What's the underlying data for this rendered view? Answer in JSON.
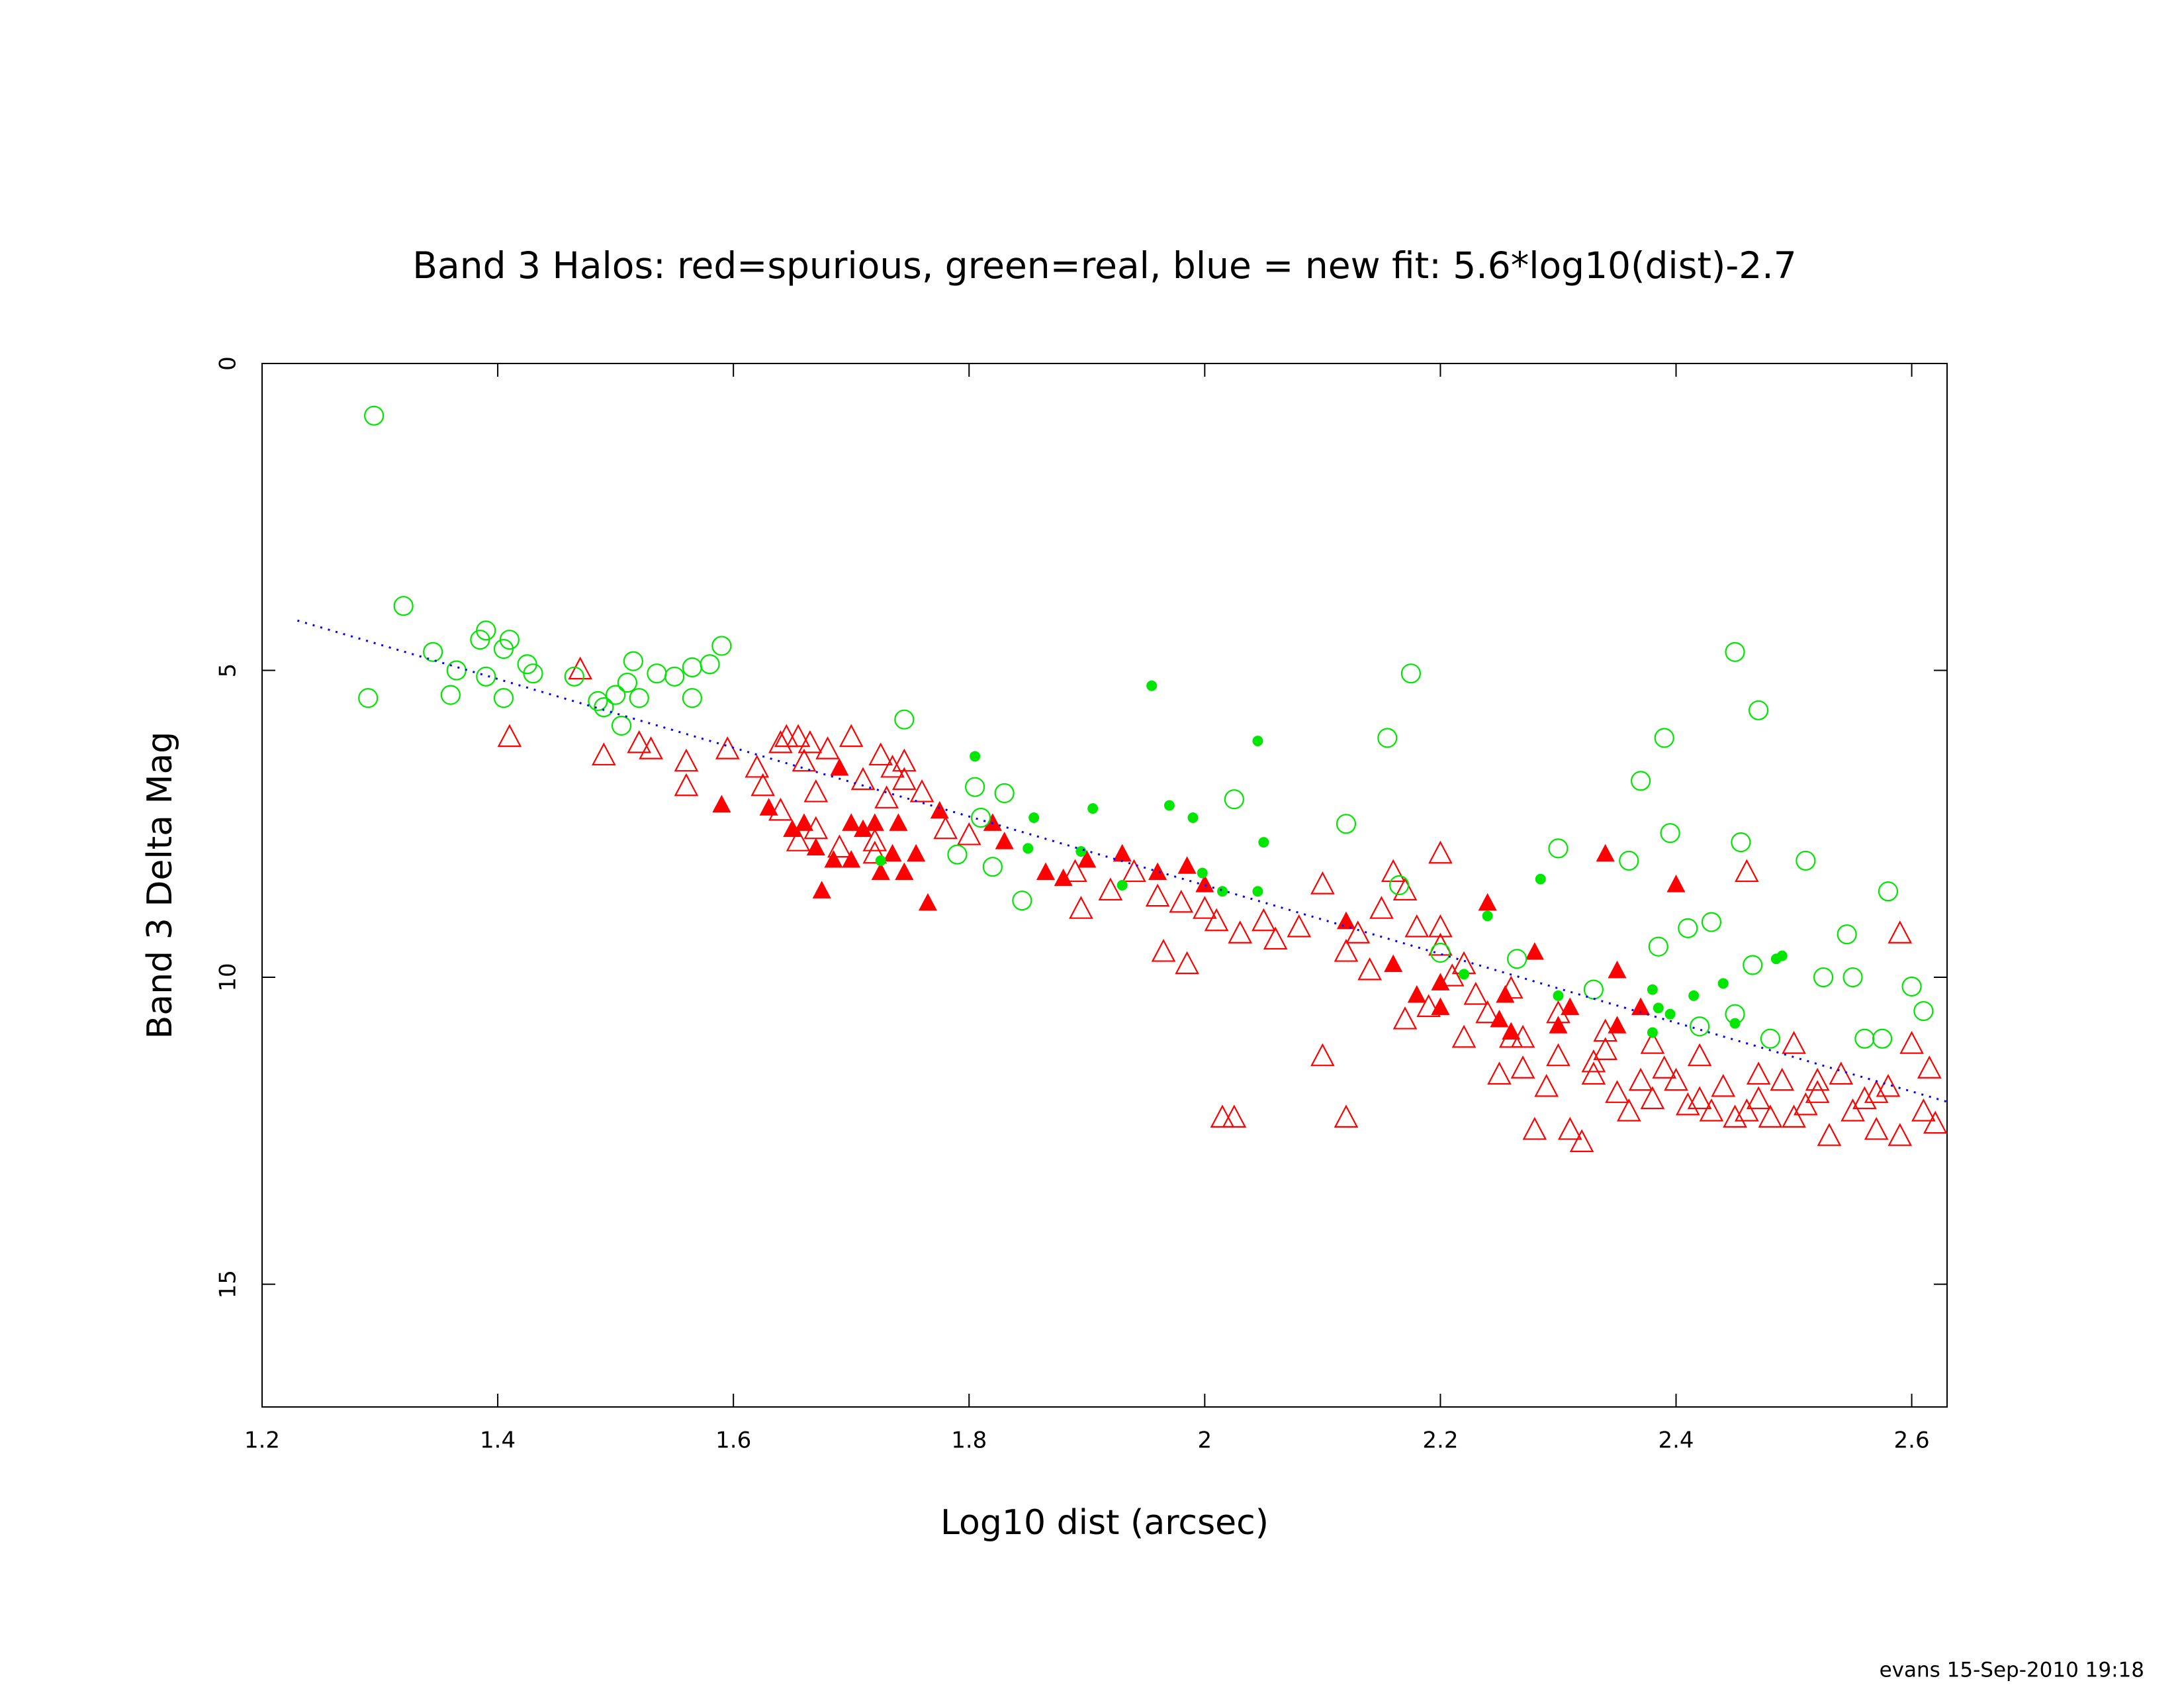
{
  "chart_data": {
    "type": "scatter",
    "title": "Band 3 Halos: red=spurious, green=real, blue = new fit: 5.6*log10(dist)-2.7",
    "xlabel": "Log10 dist (arcsec)",
    "ylabel": "Band 3 Delta Mag",
    "footer": "evans 15-Sep-2010 19:18",
    "xlim": [
      1.2,
      2.63
    ],
    "ylim": [
      0,
      17
    ],
    "yinvert": true,
    "xticks": [
      1.2,
      1.4,
      1.6,
      1.8,
      2,
      2.2,
      2.4,
      2.6
    ],
    "yticks": [
      0,
      5,
      10,
      15
    ],
    "series": [
      {
        "color": "#ff0000",
        "marker": "triangle-open",
        "x": [
          1.41,
          1.47,
          1.49,
          1.52,
          1.53,
          1.56,
          1.56,
          1.595,
          1.62,
          1.625,
          1.64,
          1.645,
          1.655,
          1.66,
          1.665,
          1.67,
          1.68,
          1.7,
          1.71,
          1.725,
          1.735,
          1.745,
          1.745,
          1.64,
          1.655,
          1.67,
          1.69,
          1.72,
          1.76,
          1.78,
          1.8,
          1.72,
          1.73,
          1.89,
          1.895,
          1.92,
          1.94,
          1.96,
          1.965,
          1.98,
          1.985,
          2.0,
          2.01,
          2.015,
          2.025,
          2.03,
          2.05,
          2.06,
          2.08,
          2.1,
          2.1,
          2.12,
          2.12,
          2.13,
          2.14,
          2.15,
          2.16,
          2.17,
          2.18,
          2.19,
          2.2,
          2.2,
          2.21,
          2.22,
          2.23,
          2.24,
          2.25,
          2.26,
          2.27,
          2.28,
          2.29,
          2.3,
          2.31,
          2.32,
          2.33,
          2.34,
          2.35,
          2.36,
          2.37,
          2.38,
          2.39,
          2.4,
          2.41,
          2.42,
          2.43,
          2.44,
          2.45,
          2.46,
          2.46,
          2.47,
          2.48,
          2.49,
          2.5,
          2.5,
          2.51,
          2.52,
          2.53,
          2.54,
          2.55,
          2.56,
          2.57,
          2.58,
          2.59,
          2.59,
          2.6,
          2.61,
          2.615,
          2.62,
          2.2,
          2.22,
          2.26,
          2.3,
          2.34,
          2.38,
          2.42,
          2.47,
          2.52,
          2.57,
          2.17,
          2.27,
          2.33
        ],
        "values": [
          6.1,
          5.0,
          6.4,
          6.2,
          6.3,
          6.5,
          6.9,
          6.3,
          6.6,
          6.9,
          6.2,
          6.1,
          6.1,
          6.5,
          6.2,
          7.0,
          6.3,
          6.1,
          6.8,
          6.4,
          6.6,
          6.5,
          6.8,
          7.3,
          7.8,
          7.6,
          7.9,
          7.8,
          7.0,
          7.6,
          7.7,
          8.0,
          7.1,
          8.3,
          8.9,
          8.6,
          8.3,
          8.7,
          9.6,
          8.8,
          9.8,
          8.9,
          9.1,
          12.3,
          12.3,
          9.3,
          9.1,
          9.4,
          9.2,
          8.5,
          11.3,
          9.6,
          12.3,
          9.3,
          9.9,
          8.9,
          8.3,
          8.6,
          9.2,
          10.5,
          8.0,
          9.2,
          10.0,
          11.0,
          10.3,
          10.6,
          11.6,
          11.0,
          11.5,
          12.5,
          11.8,
          11.3,
          12.5,
          12.7,
          11.6,
          11.2,
          11.9,
          12.2,
          11.7,
          12.0,
          11.5,
          11.7,
          12.1,
          12.0,
          12.2,
          11.8,
          12.3,
          12.2,
          8.3,
          12.0,
          12.3,
          11.7,
          12.3,
          11.1,
          12.1,
          11.9,
          12.6,
          11.6,
          12.2,
          12.0,
          12.5,
          11.8,
          9.3,
          12.6,
          11.1,
          12.2,
          11.5,
          12.4,
          9.5,
          9.8,
          10.2,
          10.6,
          10.9,
          11.1,
          11.3,
          11.6,
          11.7,
          11.9,
          10.7,
          11.0,
          11.4
        ]
      },
      {
        "color": "#ff0000",
        "marker": "triangle-filled",
        "x": [
          1.59,
          1.63,
          1.65,
          1.66,
          1.67,
          1.69,
          1.7,
          1.71,
          1.72,
          1.735,
          1.74,
          1.755,
          1.765,
          1.775,
          1.745,
          1.725,
          1.7,
          1.685,
          1.675,
          1.82,
          1.83,
          1.865,
          1.88,
          1.9,
          1.93,
          1.96,
          1.985,
          2.0,
          2.12,
          2.16,
          2.18,
          2.2,
          2.24,
          2.255,
          2.28,
          2.31,
          2.34,
          2.35,
          2.37,
          2.35,
          2.4,
          2.25,
          2.3,
          2.2,
          2.26
        ],
        "values": [
          7.2,
          7.25,
          7.6,
          7.5,
          7.9,
          6.6,
          7.5,
          7.6,
          7.5,
          8.0,
          7.5,
          8.0,
          8.8,
          7.3,
          8.3,
          8.3,
          8.1,
          8.1,
          8.6,
          7.5,
          7.8,
          8.3,
          8.4,
          8.1,
          8.0,
          8.3,
          8.2,
          8.5,
          9.1,
          9.8,
          10.3,
          10.5,
          8.8,
          10.3,
          9.6,
          10.5,
          8.0,
          9.9,
          10.5,
          10.8,
          8.5,
          10.7,
          10.8,
          10.1,
          10.9
        ]
      },
      {
        "color": "#00e600",
        "marker": "circle-open",
        "x": [
          1.29,
          1.295,
          1.32,
          1.345,
          1.36,
          1.365,
          1.385,
          1.39,
          1.39,
          1.405,
          1.41,
          1.405,
          1.425,
          1.43,
          1.465,
          1.485,
          1.49,
          1.5,
          1.505,
          1.51,
          1.515,
          1.52,
          1.535,
          1.55,
          1.565,
          1.565,
          1.58,
          1.59,
          1.745,
          1.805,
          1.81,
          1.83,
          1.82,
          1.79,
          1.845,
          2.025,
          2.12,
          2.155,
          2.175,
          2.165,
          2.2,
          2.3,
          2.265,
          2.36,
          2.37,
          2.39,
          2.395,
          2.385,
          2.41,
          2.43,
          2.45,
          2.455,
          2.47,
          2.45,
          2.465,
          2.51,
          2.545,
          2.55,
          2.58,
          2.6,
          2.61,
          2.525,
          2.48,
          2.42,
          2.33,
          2.56,
          2.575
        ],
        "values": [
          5.45,
          0.85,
          3.95,
          4.7,
          5.4,
          5.0,
          4.5,
          4.35,
          5.1,
          4.65,
          4.5,
          5.45,
          4.9,
          5.05,
          5.1,
          5.5,
          5.6,
          5.4,
          5.9,
          5.2,
          4.85,
          5.45,
          5.05,
          5.1,
          5.45,
          4.95,
          4.9,
          4.6,
          5.8,
          6.9,
          7.4,
          7.0,
          8.2,
          8.0,
          8.75,
          7.1,
          7.5,
          6.1,
          5.05,
          8.5,
          9.6,
          7.9,
          9.7,
          8.1,
          6.8,
          6.1,
          7.65,
          9.5,
          9.2,
          9.1,
          4.7,
          7.8,
          5.65,
          10.6,
          9.8,
          8.1,
          9.3,
          10.0,
          8.6,
          10.15,
          10.55,
          10.0,
          11.0,
          10.8,
          10.2,
          11.0,
          11.0
        ]
      },
      {
        "color": "#00e600",
        "marker": "circle-filled",
        "x": [
          1.725,
          1.805,
          1.855,
          1.85,
          1.905,
          1.955,
          1.97,
          1.99,
          1.998,
          2.045,
          2.05,
          2.045,
          2.015,
          2.22,
          2.24,
          2.285,
          2.3,
          2.38,
          2.385,
          2.395,
          2.415,
          2.44,
          2.485,
          2.49,
          2.45,
          2.38,
          1.93,
          1.895
        ],
        "values": [
          8.1,
          6.4,
          7.4,
          7.9,
          7.25,
          5.25,
          7.2,
          7.4,
          8.3,
          6.15,
          7.8,
          8.6,
          8.6,
          9.95,
          9.0,
          8.4,
          10.3,
          10.2,
          10.5,
          10.6,
          10.3,
          10.1,
          9.7,
          9.65,
          10.75,
          10.9,
          8.5,
          7.95
        ]
      }
    ],
    "fit": {
      "color": "#0000ff",
      "style": "dotted",
      "x": [
        1.23,
        1.3,
        1.4,
        1.5,
        1.6,
        1.7,
        1.8,
        1.9,
        2.0,
        2.1,
        2.2,
        2.3,
        2.4,
        2.5,
        2.6,
        2.63
      ],
      "values": [
        4.188,
        4.58,
        5.14,
        5.7,
        6.26,
        6.82,
        7.38,
        7.94,
        8.5,
        9.06,
        9.62,
        10.18,
        10.74,
        11.3,
        11.86,
        12.028
      ]
    }
  }
}
